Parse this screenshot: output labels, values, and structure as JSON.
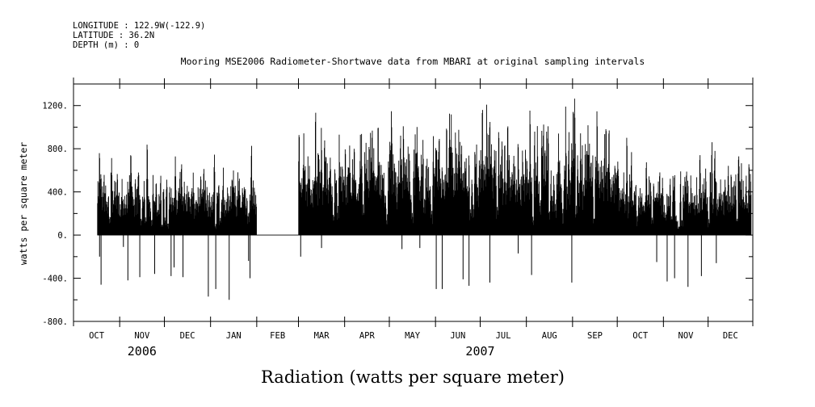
{
  "header": {
    "longitude": "LONGITUDE : 122.9W(-122.9)",
    "latitude": "LATITUDE : 36.2N",
    "depth": "DEPTH (m) : 0"
  },
  "chart_data": {
    "type": "bar",
    "title": "Mooring MSE2006 Radiometer-Shortwave data from MBARI at original sampling intervals",
    "xlabel": "Radiation (watts per square meter)",
    "ylabel": "watts per square meter",
    "ylim": [
      -800,
      1400
    ],
    "yticks": [
      -800,
      -400,
      0,
      400,
      800,
      1200
    ],
    "ytick_labels": [
      "-800.",
      "-400.",
      "0.",
      "400.",
      "800.",
      "1200."
    ],
    "xlim": [
      "2006-10-01",
      "2007-12-31"
    ],
    "months": [
      "OCT",
      "NOV",
      "DEC",
      "JAN",
      "FEB",
      "MAR",
      "APR",
      "MAY",
      "JUN",
      "JUL",
      "AUG",
      "SEP",
      "OCT",
      "NOV",
      "DEC"
    ],
    "years": [
      {
        "label": "2006",
        "center": "2006-11-16"
      },
      {
        "label": "2007",
        "center": "2007-07-01"
      }
    ],
    "grid": false,
    "series": [
      {
        "color": "#000000",
        "segments": [
          {
            "start": "2006-10-17",
            "end": "2007-01-31",
            "mean_daily_peak": 620,
            "max_peak": 900
          },
          {
            "start": "2007-02-01",
            "end": "2007-02-28",
            "mean_daily_peak": 0,
            "max_peak": 0
          },
          {
            "start": "2007-03-01",
            "end": "2007-09-30",
            "mean_daily_peak": 980,
            "max_peak": 1280
          },
          {
            "start": "2007-10-01",
            "end": "2007-12-29",
            "mean_daily_peak": 620,
            "max_peak": 940
          }
        ],
        "negative_spikes": [
          {
            "date": "2006-10-19",
            "value": -460
          },
          {
            "date": "2006-10-18",
            "value": -200
          },
          {
            "date": "2006-11-03",
            "value": -110
          },
          {
            "date": "2006-11-06",
            "value": -420
          },
          {
            "date": "2006-11-14",
            "value": -390
          },
          {
            "date": "2006-11-24",
            "value": -360
          },
          {
            "date": "2006-12-05",
            "value": -380
          },
          {
            "date": "2006-12-07",
            "value": -300
          },
          {
            "date": "2006-12-13",
            "value": -390
          },
          {
            "date": "2006-12-30",
            "value": -570
          },
          {
            "date": "2007-01-04",
            "value": -500
          },
          {
            "date": "2007-01-13",
            "value": -600
          },
          {
            "date": "2007-01-26",
            "value": -240
          },
          {
            "date": "2007-01-27",
            "value": -400
          },
          {
            "date": "2007-03-02",
            "value": -200
          },
          {
            "date": "2007-03-16",
            "value": -120
          },
          {
            "date": "2007-05-09",
            "value": -130
          },
          {
            "date": "2007-05-21",
            "value": -120
          },
          {
            "date": "2007-06-01",
            "value": -500
          },
          {
            "date": "2007-06-05",
            "value": -500
          },
          {
            "date": "2007-06-19",
            "value": -410
          },
          {
            "date": "2007-06-23",
            "value": -470
          },
          {
            "date": "2007-07-07",
            "value": -440
          },
          {
            "date": "2007-07-26",
            "value": -170
          },
          {
            "date": "2007-08-04",
            "value": -370
          },
          {
            "date": "2007-08-31",
            "value": -440
          },
          {
            "date": "2007-10-27",
            "value": -250
          },
          {
            "date": "2007-11-03",
            "value": -430
          },
          {
            "date": "2007-11-08",
            "value": -400
          },
          {
            "date": "2007-11-17",
            "value": -480
          },
          {
            "date": "2007-11-26",
            "value": -380
          },
          {
            "date": "2007-12-06",
            "value": -260
          }
        ]
      }
    ]
  }
}
